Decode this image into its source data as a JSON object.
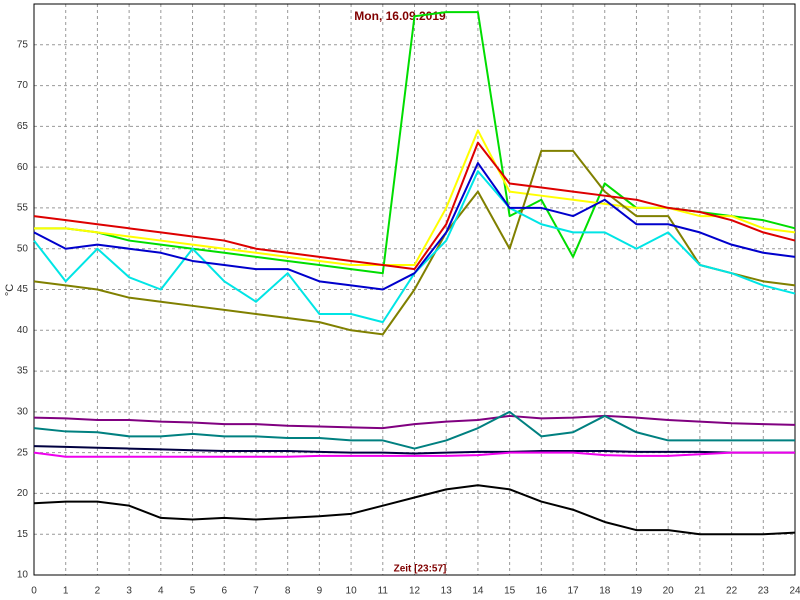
{
  "chart_data": {
    "type": "line",
    "title": "Mon, 16.09.2019",
    "xlabel": "Zeit [23:57]",
    "ylabel": "°C",
    "x": [
      0,
      1,
      2,
      3,
      4,
      5,
      6,
      7,
      8,
      9,
      10,
      11,
      12,
      13,
      14,
      15,
      16,
      17,
      18,
      19,
      20,
      21,
      22,
      23,
      24
    ],
    "xlim": [
      0,
      24
    ],
    "xticks": [
      0,
      1,
      2,
      3,
      4,
      5,
      6,
      7,
      8,
      9,
      10,
      11,
      12,
      13,
      14,
      15,
      16,
      17,
      18,
      19,
      20,
      21,
      22,
      23,
      24
    ],
    "ylim": [
      10,
      80
    ],
    "yticks": [
      10,
      15,
      20,
      25,
      30,
      35,
      40,
      45,
      50,
      55,
      60,
      65,
      70,
      75
    ],
    "grid": true,
    "series": [
      {
        "color": "#00dd00",
        "values": [
          52.5,
          52.5,
          52,
          51,
          50.5,
          50,
          49.5,
          49,
          48.5,
          48,
          47.5,
          47,
          78.5,
          79,
          79,
          54,
          56,
          49,
          58,
          55,
          55,
          54.5,
          54,
          53.5,
          52.5
        ]
      },
      {
        "color": "#ffff00",
        "values": [
          52.5,
          52.5,
          52,
          51.5,
          51,
          50.5,
          50,
          49.5,
          49,
          48.5,
          48,
          48,
          48,
          55,
          64.5,
          57,
          56.5,
          56,
          55.5,
          55,
          55,
          54,
          54,
          52.5,
          52
        ]
      },
      {
        "color": "#808000",
        "values": [
          46,
          45.5,
          45,
          44,
          43.5,
          43,
          42.5,
          42,
          41.5,
          41,
          40,
          39.5,
          45,
          52,
          57,
          50,
          62,
          62,
          57,
          54,
          54,
          48,
          47,
          46,
          45.5
        ]
      },
      {
        "color": "#00e5e5",
        "values": [
          51,
          46,
          50,
          46.5,
          45,
          50,
          46,
          43.5,
          47,
          42,
          42,
          41,
          47,
          51,
          59.5,
          55,
          53,
          52,
          52,
          50,
          52,
          48,
          47,
          45.5,
          44.5
        ]
      },
      {
        "color": "#dd0000",
        "values": [
          54,
          53.5,
          53,
          52.5,
          52,
          51.5,
          51,
          50,
          49.5,
          49,
          48.5,
          48,
          47.5,
          53,
          63,
          58,
          57.5,
          57,
          56.5,
          56,
          55,
          54.5,
          53.5,
          52,
          51
        ]
      },
      {
        "color": "#0000cc",
        "values": [
          52,
          50,
          50.5,
          50,
          49.5,
          48.5,
          48,
          47.5,
          47.5,
          46,
          45.5,
          45,
          47,
          52,
          60.5,
          55,
          55,
          54,
          56,
          53,
          53,
          52,
          50.5,
          49.5,
          49
        ]
      },
      {
        "color": "#800080",
        "values": [
          29.3,
          29.2,
          29,
          29,
          28.8,
          28.7,
          28.5,
          28.5,
          28.3,
          28.2,
          28.1,
          28,
          28.5,
          28.8,
          29,
          29.5,
          29.2,
          29.3,
          29.5,
          29.3,
          29,
          28.8,
          28.6,
          28.5,
          28.4
        ]
      },
      {
        "color": "#008080",
        "values": [
          28,
          27.6,
          27.5,
          27,
          27,
          27.3,
          27,
          27,
          26.8,
          26.8,
          26.5,
          26.5,
          25.5,
          26.5,
          28,
          30,
          27,
          27.5,
          29.5,
          27.5,
          26.5,
          26.5,
          26.5,
          26.5,
          26.5
        ]
      },
      {
        "color": "#000040",
        "values": [
          25.8,
          25.7,
          25.6,
          25.5,
          25.4,
          25.3,
          25.2,
          25.2,
          25.2,
          25.1,
          25,
          25,
          24.9,
          25,
          25.1,
          25.1,
          25.2,
          25.2,
          25.2,
          25.1,
          25.1,
          25.1,
          25,
          25,
          25
        ]
      },
      {
        "color": "#ee00ee",
        "values": [
          25,
          24.5,
          24.5,
          24.5,
          24.5,
          24.5,
          24.5,
          24.5,
          24.5,
          24.6,
          24.6,
          24.6,
          24.6,
          24.6,
          24.7,
          25,
          25,
          25,
          24.7,
          24.6,
          24.6,
          24.8,
          25,
          25,
          25
        ]
      },
      {
        "color": "#000000",
        "values": [
          18.8,
          19,
          19,
          18.5,
          17,
          16.8,
          17,
          16.8,
          17,
          17.2,
          17.5,
          18.5,
          19.5,
          20.5,
          21,
          20.5,
          19,
          18,
          16.5,
          15.5,
          15.5,
          15,
          15,
          15,
          15.2
        ]
      }
    ]
  }
}
